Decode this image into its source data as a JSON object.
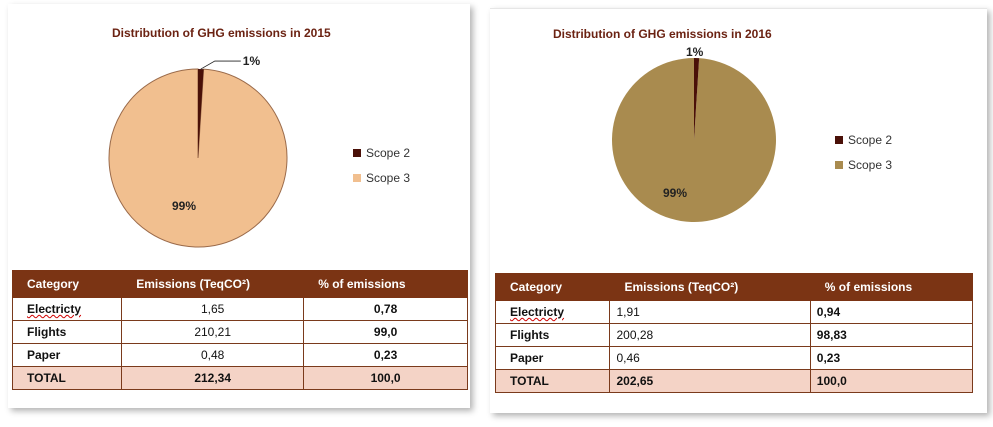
{
  "colors": {
    "header_bg": "#7b3414",
    "total_bg": "#f4d3c6",
    "scope2_2015": "#4a1008",
    "scope3_2015": "#f1bf8f",
    "scope2_2016": "#4a1008",
    "scope3_2016": "#a98b4f",
    "title_color": "#6b2212"
  },
  "chart_data": [
    {
      "type": "pie",
      "title": "Distribution of GHG emissions in 2015",
      "slices": [
        {
          "name": "Scope 2",
          "value": 1,
          "label": "1%"
        },
        {
          "name": "Scope 3",
          "value": 99,
          "label": "99%"
        }
      ],
      "legend": [
        "Scope 2",
        "Scope 3"
      ],
      "legend_position": "right"
    },
    {
      "type": "pie",
      "title": "Distribution of GHG emissions in 2016",
      "slices": [
        {
          "name": "Scope 2",
          "value": 1,
          "label": "1%"
        },
        {
          "name": "Scope 3",
          "value": 99,
          "label": "99%"
        }
      ],
      "legend": [
        "Scope 2",
        "Scope 3"
      ],
      "legend_position": "right"
    }
  ],
  "tables": {
    "t2015": {
      "headers": [
        "Category",
        "Emissions (TeqCO²)",
        "% of emissions"
      ],
      "rows": [
        [
          "Electricty",
          "1,65",
          "0,78"
        ],
        [
          "Flights",
          "210,21",
          "99,0"
        ],
        [
          "Paper",
          "0,48",
          "0,23"
        ]
      ],
      "total": [
        "TOTAL",
        "212,34",
        "100,0"
      ]
    },
    "t2016": {
      "headers": [
        "Category",
        "Emissions (TeqCO²)",
        "% of emissions"
      ],
      "rows": [
        [
          "Electricty",
          "1,91",
          "0,94"
        ],
        [
          "Flights",
          "200,28",
          "98,83"
        ],
        [
          "Paper",
          "0,46",
          "0,23"
        ]
      ],
      "total": [
        "TOTAL",
        "202,65",
        "100,0"
      ]
    }
  }
}
